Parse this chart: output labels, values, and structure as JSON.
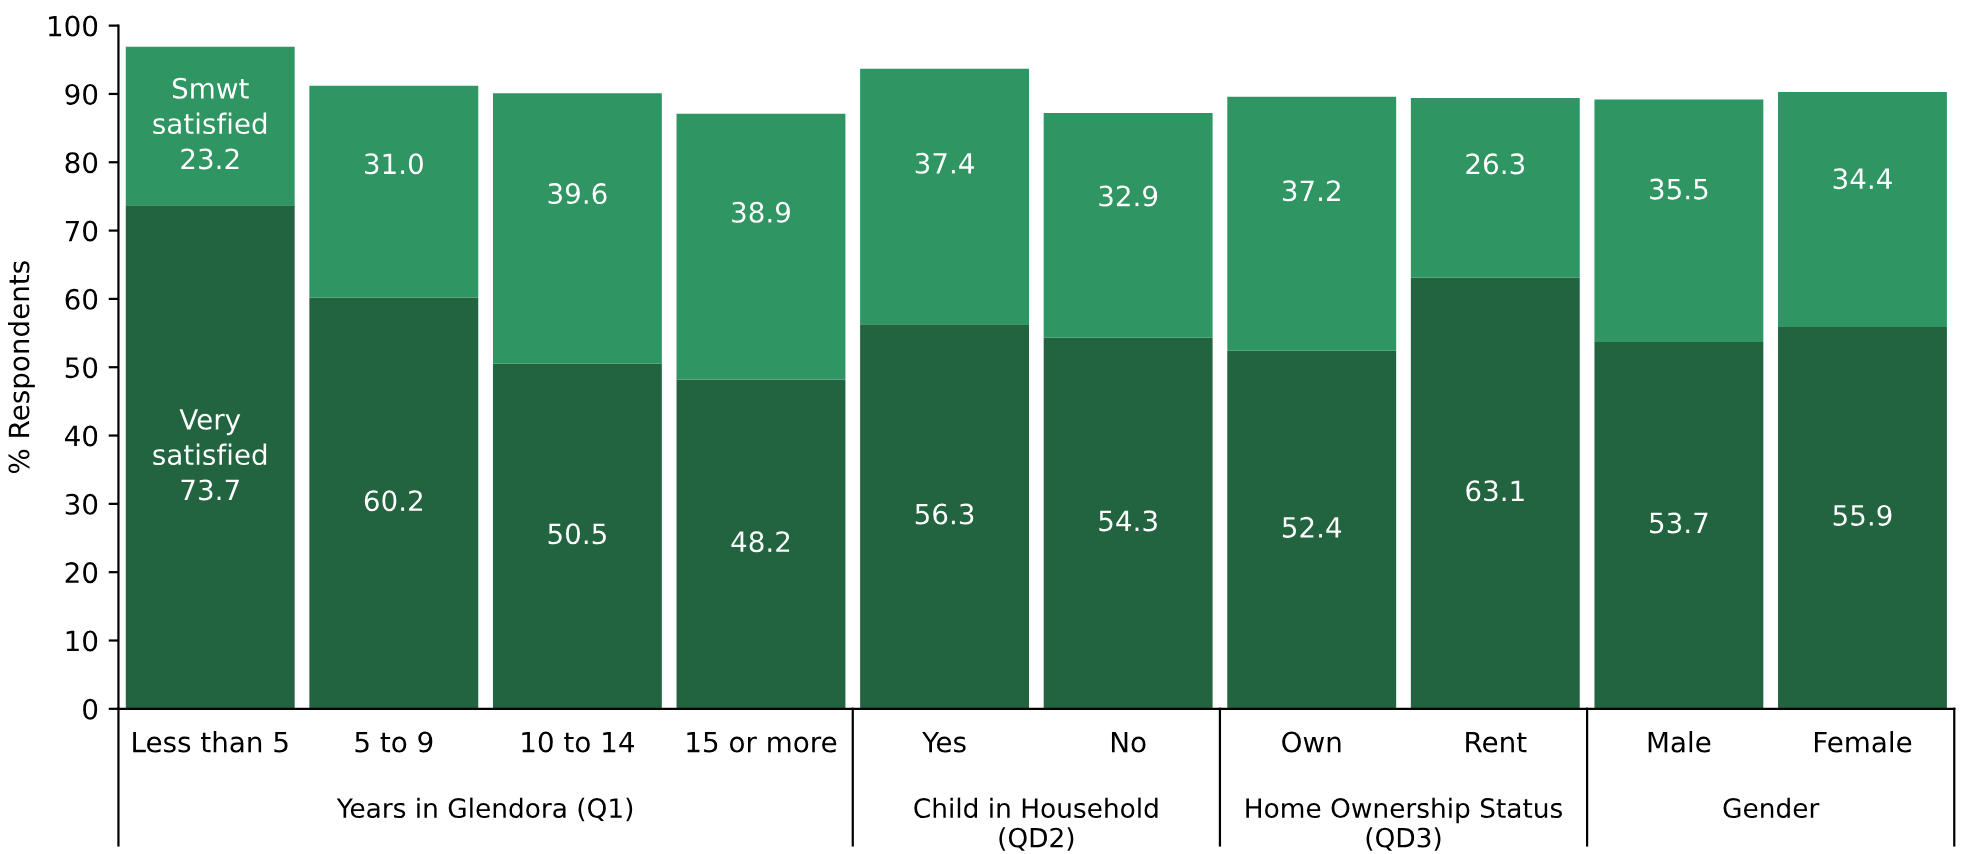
{
  "chart_data": {
    "type": "bar",
    "stacked": true,
    "ylabel": "% Respondents",
    "categories": [
      "Less than 5",
      "5 to 9",
      "10 to 14",
      "15 or more",
      "Yes",
      "No",
      "Own",
      "Rent",
      "Male",
      "Female"
    ],
    "series": [
      {
        "name": "Very satisfied",
        "color": "#22643f",
        "values": [
          73.7,
          60.2,
          50.5,
          48.2,
          56.3,
          54.3,
          52.4,
          63.1,
          53.7,
          55.9
        ],
        "value_labels": [
          "73.7",
          "60.2",
          "50.5",
          "48.2",
          "56.3",
          "54.3",
          "52.4",
          "63.1",
          "53.7",
          "55.9"
        ]
      },
      {
        "name": "Smwt satisfied",
        "color": "#2f9562",
        "values": [
          23.2,
          31.0,
          39.6,
          38.9,
          37.4,
          32.9,
          37.2,
          26.3,
          35.5,
          34.4
        ],
        "value_labels": [
          "23.2",
          "31.0",
          "39.6",
          "38.9",
          "37.4",
          "32.9",
          "37.2",
          "26.3",
          "35.5",
          "34.4"
        ]
      }
    ],
    "ylim": [
      0,
      100
    ],
    "yticks": [
      0,
      10,
      20,
      30,
      40,
      50,
      60,
      70,
      80,
      90,
      100
    ],
    "grid": false,
    "legend": false,
    "annotations": [
      "Years in Glendora (Q1)",
      "Child in Household (QD2)",
      "Home Ownership Status (QD3)",
      "Gender"
    ]
  }
}
